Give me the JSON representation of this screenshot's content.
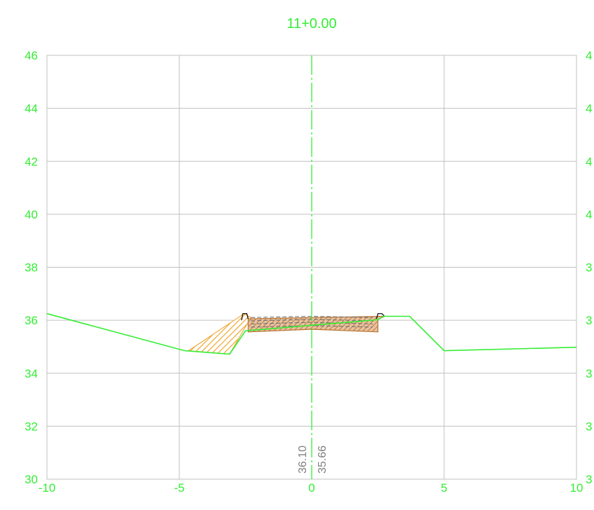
{
  "chart_data": {
    "type": "line",
    "title": "11+0.00",
    "xlabel": "",
    "ylabel": "",
    "xlim": [
      -10,
      10
    ],
    "ylim": [
      30,
      46
    ],
    "x_ticks": [
      "-10",
      "-5",
      "0",
      "5",
      "10"
    ],
    "y_ticks_left": [
      "30",
      "32",
      "34",
      "36",
      "38",
      "40",
      "42",
      "44",
      "46"
    ],
    "y_ticks_right": [
      "3",
      "3",
      "3",
      "3",
      "3",
      "4",
      "4",
      "4",
      "4"
    ],
    "grid": true,
    "colors": {
      "ground": "#33ee33",
      "grid": "#c0c0c0",
      "fill_slope": "#f0a020",
      "fill_pavement": "#b87333",
      "dashed": "#707070",
      "label_gray": "#808080"
    },
    "centerline_x": 0,
    "elevation_labels": [
      "36.10",
      "35.66"
    ],
    "ground_profile": [
      {
        "x": -10.0,
        "y": 36.25
      },
      {
        "x": -4.8,
        "y": 34.85
      },
      {
        "x": -3.1,
        "y": 34.72
      },
      {
        "x": -2.5,
        "y": 35.6
      },
      {
        "x": 2.5,
        "y": 36.02
      },
      {
        "x": 2.7,
        "y": 36.15
      },
      {
        "x": 3.7,
        "y": 36.15
      },
      {
        "x": 5.0,
        "y": 34.85
      },
      {
        "x": 10.0,
        "y": 34.98
      }
    ],
    "fill_slope_polygon": [
      {
        "x": -4.65,
        "y": 34.85
      },
      {
        "x": -2.55,
        "y": 36.25
      },
      {
        "x": -2.3,
        "y": 36.1
      },
      {
        "x": -3.1,
        "y": 34.72
      }
    ],
    "pavement_polygon": [
      {
        "x": -2.4,
        "y": 35.56
      },
      {
        "x": 0.0,
        "y": 35.66
      },
      {
        "x": 2.5,
        "y": 35.56
      },
      {
        "x": 2.5,
        "y": 36.02
      },
      {
        "x": 2.75,
        "y": 36.15
      },
      {
        "x": 0.0,
        "y": 36.1
      },
      {
        "x": -2.4,
        "y": 36.05
      }
    ],
    "curbs": [
      [
        {
          "x": -2.65,
          "y": 36.0
        },
        {
          "x": -2.6,
          "y": 36.25
        },
        {
          "x": -2.45,
          "y": 36.25
        },
        {
          "x": -2.4,
          "y": 36.05
        }
      ],
      [
        {
          "x": 2.45,
          "y": 36.05
        },
        {
          "x": 2.5,
          "y": 36.25
        },
        {
          "x": 2.65,
          "y": 36.25
        },
        {
          "x": 2.75,
          "y": 36.15
        }
      ]
    ],
    "dashed_layers": [
      [
        {
          "x": -2.3,
          "y": 36.1
        },
        {
          "x": 0.0,
          "y": 36.15
        },
        {
          "x": 2.3,
          "y": 36.1
        }
      ],
      [
        {
          "x": -2.3,
          "y": 35.98
        },
        {
          "x": 0.0,
          "y": 36.03
        },
        {
          "x": 2.3,
          "y": 35.98
        }
      ],
      [
        {
          "x": -2.3,
          "y": 35.86
        },
        {
          "x": 0.0,
          "y": 35.92
        },
        {
          "x": 2.3,
          "y": 35.86
        }
      ],
      [
        {
          "x": -2.3,
          "y": 35.74
        },
        {
          "x": 0.0,
          "y": 35.8
        },
        {
          "x": 2.3,
          "y": 35.74
        }
      ]
    ]
  }
}
